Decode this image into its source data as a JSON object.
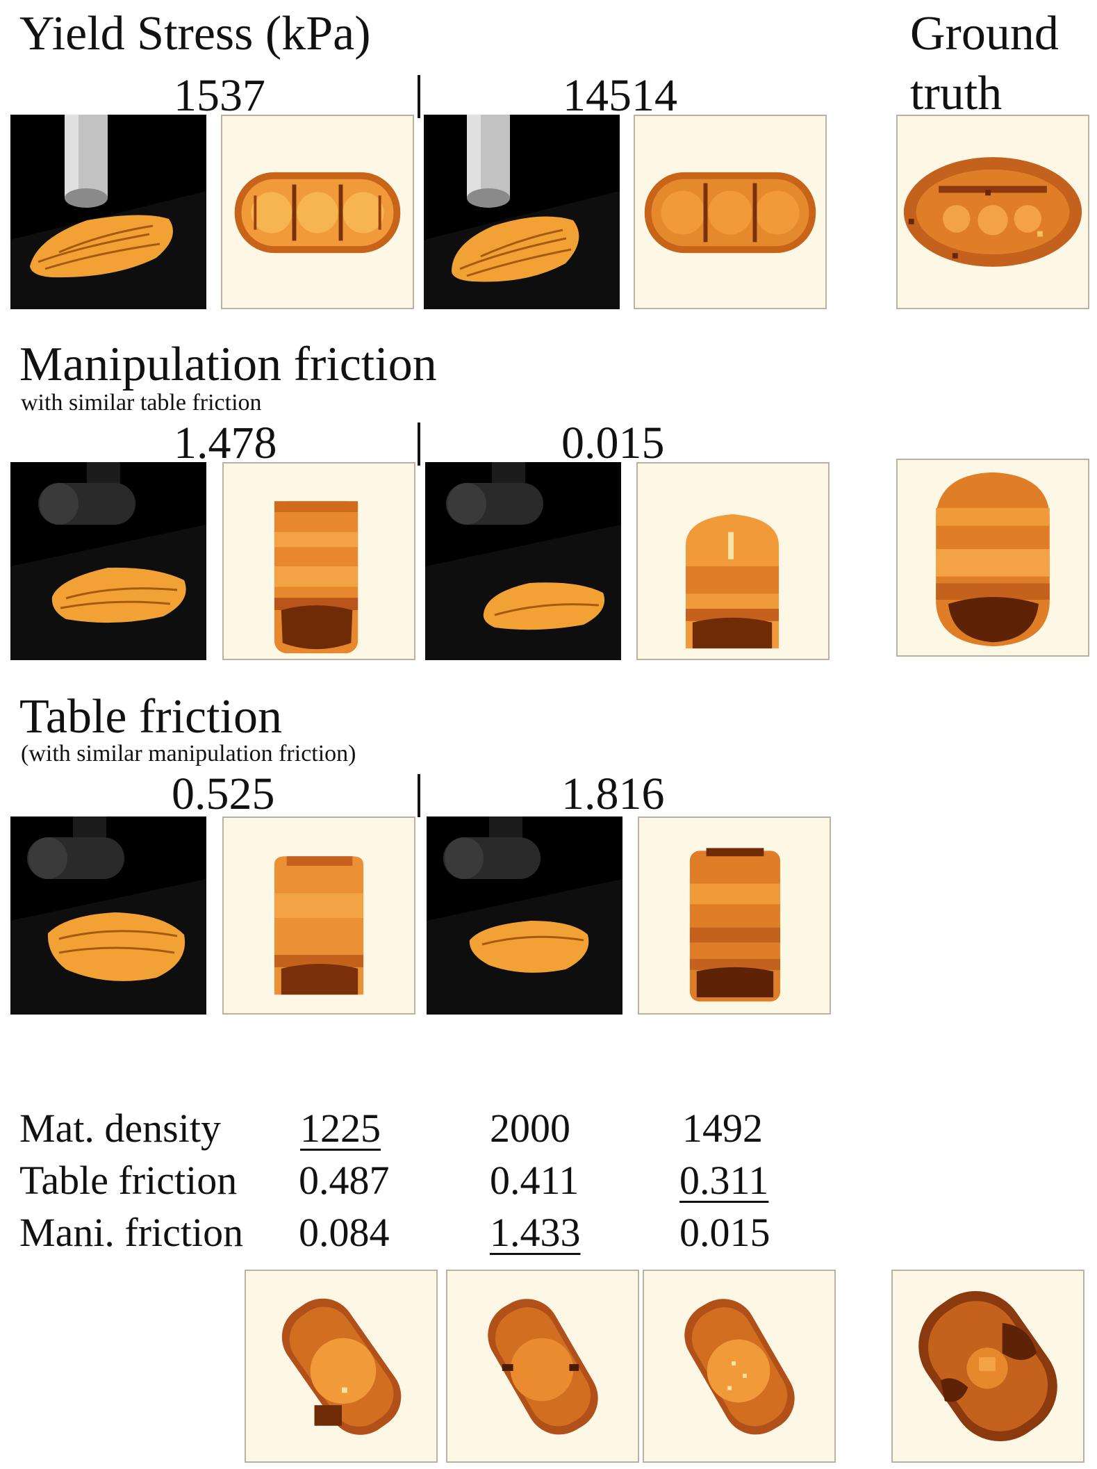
{
  "yield_stress": {
    "title": "Yield Stress (kPa)",
    "value_1": "1537",
    "value_2": "14514"
  },
  "ground_truth": {
    "label_line1": "Ground",
    "label_line2": "truth"
  },
  "manipulation_friction": {
    "title": "Manipulation friction",
    "subtitle": "with similar table friction",
    "value_1": "1.478",
    "value_2": "0.015"
  },
  "table_friction": {
    "title": "Table friction",
    "subtitle": "(with similar manipulation friction)",
    "value_1": "0.525",
    "value_2": "1.816"
  },
  "param_table": {
    "rows": [
      {
        "label": "Mat. density",
        "values": [
          "1225",
          "2000",
          "1492"
        ]
      },
      {
        "label": "Table friction",
        "values": [
          "0.487",
          "0.411",
          "0.311"
        ]
      },
      {
        "label": "Mani. friction",
        "values": [
          "0.084",
          "1.433",
          "0.015"
        ]
      }
    ]
  },
  "colors": {
    "heatmap_background": "#fdf8e6",
    "heatmap_light": "#f7a441",
    "heatmap_mid": "#e2811b",
    "heatmap_dark": "#6f2a06",
    "voxel_orange": "#f2a234",
    "scene_background": "#000000",
    "gripper_grey": "#b8b8b8"
  }
}
